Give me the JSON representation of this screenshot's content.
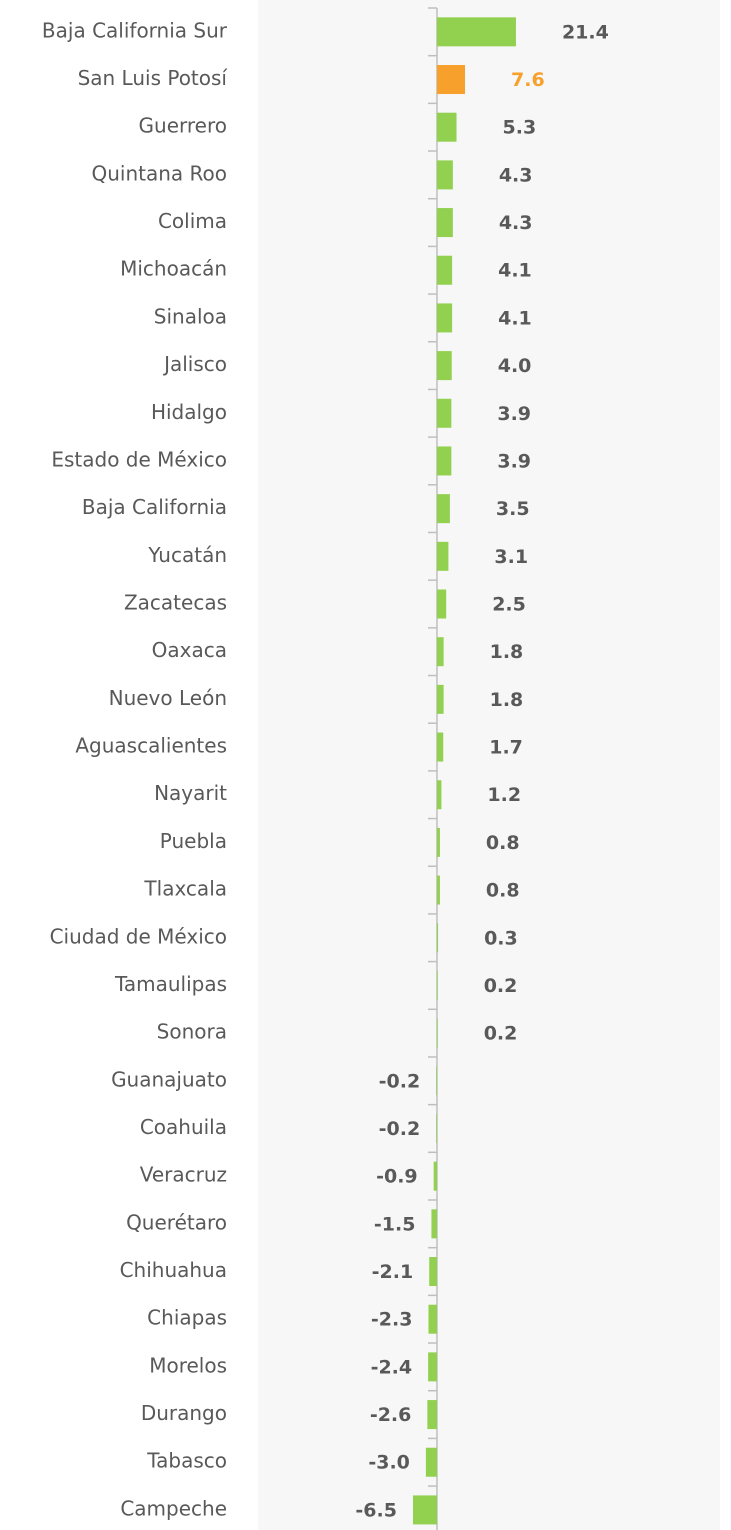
{
  "chart_data": {
    "type": "bar",
    "orientation": "horizontal",
    "categories": [
      "Baja California Sur",
      "San Luis Potosí",
      "Guerrero",
      "Quintana Roo",
      "Colima",
      "Michoacán",
      "Sinaloa",
      "Jalisco",
      "Hidalgo",
      "Estado de México",
      "Baja California",
      "Yucatán",
      "Zacatecas",
      "Oaxaca",
      "Nuevo León",
      "Aguascalientes",
      "Nayarit",
      "Puebla",
      "Tlaxcala",
      "Ciudad de México",
      "Tamaulipas",
      "Sonora",
      "Guanajuato",
      "Coahuila",
      "Veracruz",
      "Querétaro",
      "Chihuahua",
      "Chiapas",
      "Morelos",
      "Durango",
      "Tabasco",
      "Campeche"
    ],
    "values": [
      21.4,
      7.6,
      5.3,
      4.3,
      4.3,
      4.1,
      4.1,
      4.0,
      3.9,
      3.9,
      3.5,
      3.1,
      2.5,
      1.8,
      1.8,
      1.7,
      1.2,
      0.8,
      0.8,
      0.3,
      0.2,
      0.2,
      -0.2,
      -0.2,
      -0.9,
      -1.5,
      -2.1,
      -2.3,
      -2.4,
      -2.6,
      -3.0,
      -6.5
    ],
    "value_labels": [
      "21.4",
      "7.6",
      "5.3",
      "4.3",
      "4.3",
      "4.1",
      "4.1",
      "4.0",
      "3.9",
      "3.9",
      "3.5",
      "3.1",
      "2.5",
      "1.8",
      "1.8",
      "1.7",
      "1.2",
      "0.8",
      "0.8",
      "0.3",
      "0.2",
      "0.2",
      "-0.2",
      "-0.2",
      "-0.9",
      "-1.5",
      "-2.1",
      "-2.3",
      "-2.4",
      "-2.6",
      "-3.0",
      "-6.5"
    ],
    "colors": [
      "#92d050",
      "#f7a02c",
      "#92d050",
      "#92d050",
      "#92d050",
      "#92d050",
      "#92d050",
      "#92d050",
      "#92d050",
      "#92d050",
      "#92d050",
      "#92d050",
      "#92d050",
      "#92d050",
      "#92d050",
      "#92d050",
      "#92d050",
      "#92d050",
      "#92d050",
      "#92d050",
      "#92d050",
      "#92d050",
      "#92d050",
      "#92d050",
      "#92d050",
      "#92d050",
      "#92d050",
      "#92d050",
      "#92d050",
      "#92d050",
      "#92d050",
      "#92d050"
    ],
    "label_color": "#595959",
    "xlim": [
      -48.5,
      76.7
    ]
  }
}
